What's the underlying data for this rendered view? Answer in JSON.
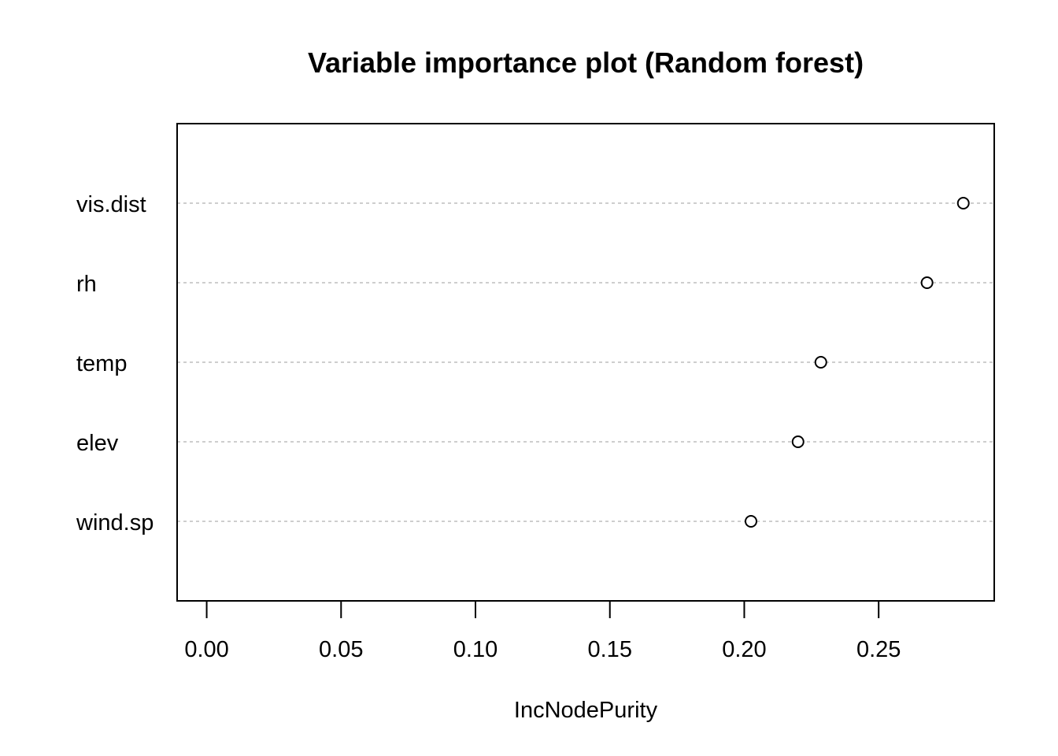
{
  "chart_data": {
    "type": "scatter",
    "title": "Variable importance plot (Random forest)",
    "xlabel": "IncNodePurity",
    "ylabel": "",
    "categories": [
      "vis.dist",
      "rh",
      "temp",
      "elev",
      "wind.sp"
    ],
    "values": [
      0.2815,
      0.268,
      0.2285,
      0.22,
      0.2025
    ],
    "xlim": [
      -0.011,
      0.293
    ],
    "xticks": [
      0.0,
      0.05,
      0.1,
      0.15,
      0.2,
      0.25
    ],
    "xtick_labels": [
      "0.00",
      "0.05",
      "0.10",
      "0.15",
      "0.20",
      "0.25"
    ],
    "grid": "dotted horizontal guide per category",
    "marker": "open-circle",
    "colors": {
      "guide": "#bebebe",
      "marker": "#000000",
      "frame": "#000000"
    }
  }
}
